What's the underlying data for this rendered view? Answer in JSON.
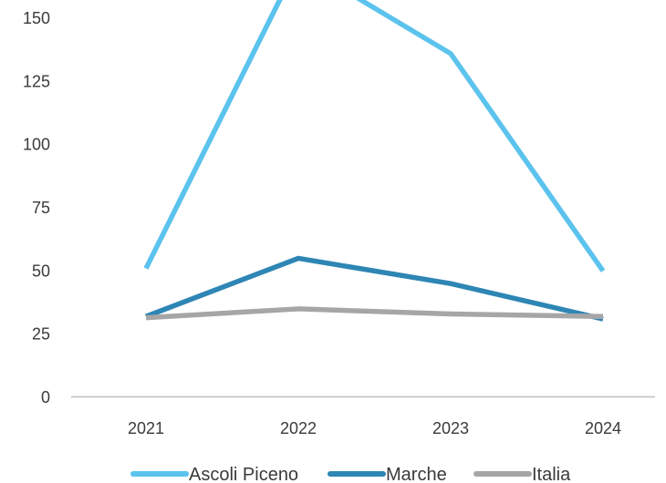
{
  "chart_data": {
    "type": "line",
    "title": "",
    "xlabel": "",
    "ylabel": "",
    "categories": [
      "2021",
      "2022",
      "2023",
      "2024"
    ],
    "ylim": [
      0,
      150
    ],
    "yticks": [
      0,
      25,
      50,
      75,
      100,
      125,
      150
    ],
    "grid": false,
    "legend": "bottom",
    "series": [
      {
        "name": "Ascoli Piceno",
        "values": [
          51,
          172,
          136,
          50
        ],
        "color": "#5bc3ed"
      },
      {
        "name": "Marche",
        "values": [
          32,
          55,
          45,
          31
        ],
        "color": "#2e86b4"
      },
      {
        "name": "Italia",
        "values": [
          31.5,
          35,
          33,
          32
        ],
        "color": "#a6a6a6"
      }
    ]
  }
}
